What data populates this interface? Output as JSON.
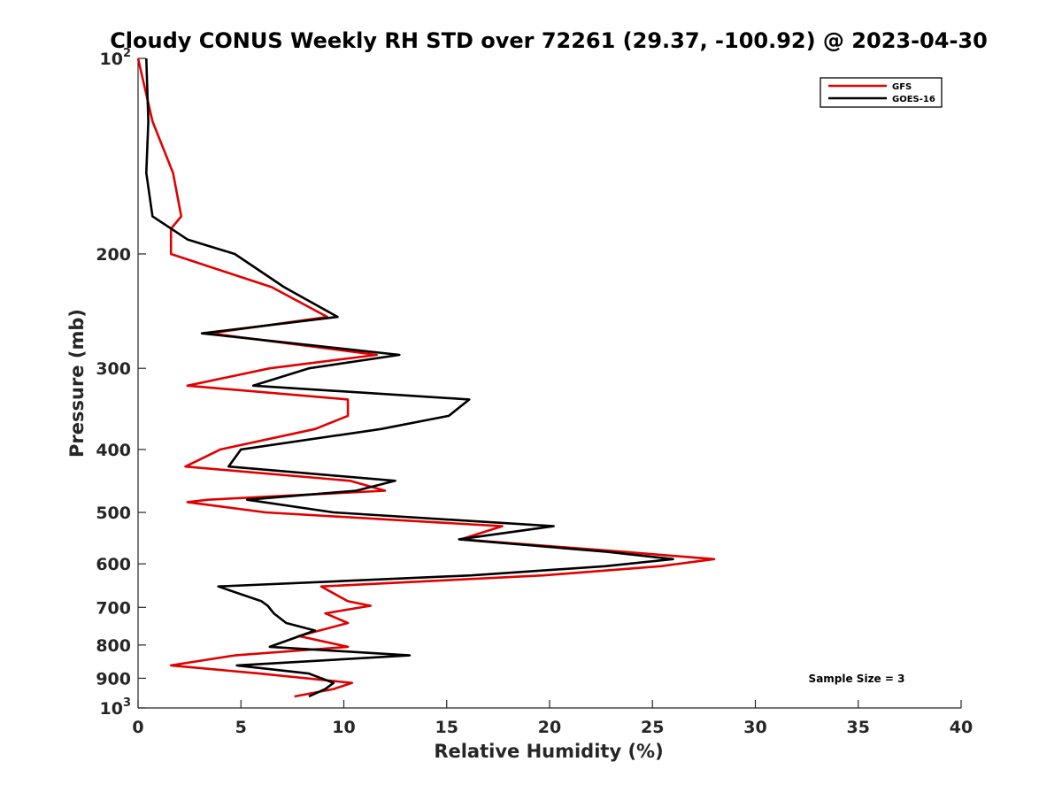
{
  "chart_data": {
    "type": "line",
    "title": "Cloudy CONUS Weekly RH STD over 72261 (29.37, -100.92) @ 2023-04-30",
    "xlabel": "Relative Humidity (%)",
    "ylabel": "Pressure (mb)",
    "xlim": [
      0,
      40
    ],
    "ylim": [
      1000,
      100
    ],
    "y_scale": "log",
    "x_ticks": [
      "0",
      "5",
      "10",
      "15",
      "20",
      "25",
      "30",
      "35",
      "40"
    ],
    "y_ticks": [
      {
        "value": 100,
        "base": "10",
        "exp": "2"
      },
      {
        "value": 200,
        "label": "200"
      },
      {
        "value": 300,
        "label": "300"
      },
      {
        "value": 400,
        "label": "400"
      },
      {
        "value": 500,
        "label": "500"
      },
      {
        "value": 600,
        "label": "600"
      },
      {
        "value": 700,
        "label": "700"
      },
      {
        "value": 800,
        "label": "800"
      },
      {
        "value": 900,
        "label": "900"
      },
      {
        "value": 1000,
        "base": "10",
        "exp": "3"
      }
    ],
    "grid": false,
    "legend_position": "top-right",
    "annotation": "Sample Size = 3",
    "series": [
      {
        "name": "GFS",
        "color": "#e00000",
        "points": [
          [
            0.0,
            100
          ],
          [
            0.7,
            125
          ],
          [
            1.7,
            150
          ],
          [
            2.1,
            175
          ],
          [
            1.6,
            183
          ],
          [
            1.6,
            200
          ],
          [
            6.5,
            225
          ],
          [
            9.2,
            250
          ],
          [
            3.5,
            265
          ],
          [
            11.6,
            286
          ],
          [
            6.4,
            300
          ],
          [
            2.4,
            319
          ],
          [
            10.2,
            335
          ],
          [
            10.2,
            355
          ],
          [
            8.6,
            372
          ],
          [
            4.0,
            400
          ],
          [
            2.3,
            425
          ],
          [
            10.3,
            447
          ],
          [
            12.0,
            463
          ],
          [
            3.4,
            478
          ],
          [
            2.4,
            482
          ],
          [
            6.2,
            500
          ],
          [
            17.7,
            525
          ],
          [
            15.7,
            550
          ],
          [
            23.6,
            575
          ],
          [
            28.0,
            590
          ],
          [
            25.4,
            605
          ],
          [
            19.7,
            625
          ],
          [
            8.9,
            650
          ],
          [
            10.2,
            685
          ],
          [
            11.3,
            696
          ],
          [
            9.1,
            715
          ],
          [
            10.2,
            740
          ],
          [
            7.8,
            775
          ],
          [
            10.2,
            805
          ],
          [
            4.7,
            830
          ],
          [
            1.6,
            860
          ],
          [
            5.9,
            885
          ],
          [
            10.4,
            915
          ],
          [
            9.5,
            935
          ],
          [
            7.6,
            960
          ]
        ]
      },
      {
        "name": "GOES-16",
        "color": "#000000",
        "points": [
          [
            0.4,
            100
          ],
          [
            0.5,
            125
          ],
          [
            0.4,
            150
          ],
          [
            0.7,
            175
          ],
          [
            2.4,
            190
          ],
          [
            4.7,
            200
          ],
          [
            7.1,
            225
          ],
          [
            9.7,
            250
          ],
          [
            3.1,
            265
          ],
          [
            12.7,
            286
          ],
          [
            8.3,
            300
          ],
          [
            5.6,
            319
          ],
          [
            16.1,
            335
          ],
          [
            15.1,
            355
          ],
          [
            11.8,
            372
          ],
          [
            5.0,
            400
          ],
          [
            4.4,
            425
          ],
          [
            12.5,
            447
          ],
          [
            10.6,
            463
          ],
          [
            5.3,
            478
          ],
          [
            9.5,
            500
          ],
          [
            20.2,
            525
          ],
          [
            15.6,
            550
          ],
          [
            22.8,
            575
          ],
          [
            26.0,
            590
          ],
          [
            22.7,
            605
          ],
          [
            16.2,
            625
          ],
          [
            3.9,
            650
          ],
          [
            6.0,
            685
          ],
          [
            6.3,
            696
          ],
          [
            6.6,
            715
          ],
          [
            7.2,
            740
          ],
          [
            8.6,
            760
          ],
          [
            6.4,
            805
          ],
          [
            13.2,
            830
          ],
          [
            4.8,
            860
          ],
          [
            8.3,
            885
          ],
          [
            9.5,
            915
          ],
          [
            9.1,
            935
          ],
          [
            8.3,
            960
          ]
        ]
      }
    ]
  }
}
